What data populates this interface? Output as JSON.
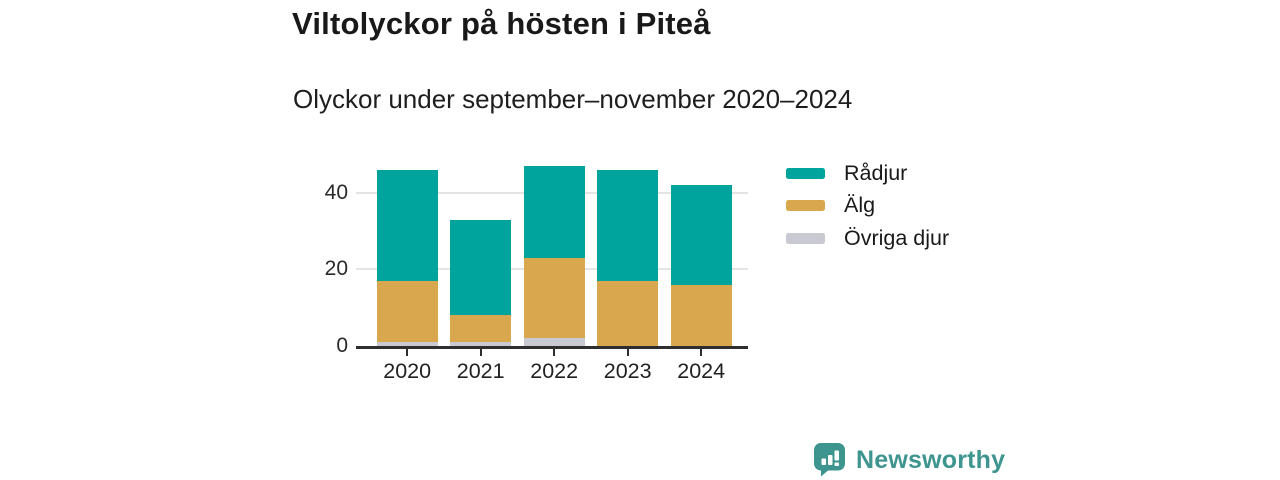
{
  "header": {
    "title": "Viltolyckor på hösten i Piteå",
    "subtitle": "Olyckor under september–november 2020–2024"
  },
  "chart_data": {
    "type": "bar",
    "stacked": true,
    "title": "Viltolyckor på hösten i Piteå",
    "subtitle": "Olyckor under september–november 2020–2024",
    "categories": [
      "2020",
      "2021",
      "2022",
      "2023",
      "2024"
    ],
    "series": [
      {
        "name": "Rådjur",
        "color": "#00a49c",
        "values": [
          29,
          25,
          24,
          29,
          26
        ]
      },
      {
        "name": "Älg",
        "color": "#d9a84e",
        "values": [
          16,
          7,
          21,
          17,
          16
        ]
      },
      {
        "name": "Övriga djur",
        "color": "#c9c9d1",
        "values": [
          1,
          1,
          2,
          0,
          0
        ]
      }
    ],
    "stack_order_bottom_to_top": [
      "Övriga djur",
      "Älg",
      "Rådjur"
    ],
    "totals": [
      46,
      33,
      47,
      46,
      42
    ],
    "xlabel": "",
    "ylabel": "",
    "y_ticks": [
      0,
      20,
      40
    ],
    "ylim": [
      0,
      48
    ],
    "grid": "horizontal",
    "legend_position": "right"
  },
  "colors": {
    "axis": "#2e2e2e",
    "gridline": "#e4e4e4",
    "tick_label": "#2a2a2a",
    "brand_teal": "#3e948e"
  },
  "branding": {
    "logo_text": "Newsworthy",
    "logo_icon": "newsworthy-speech-bubble-bar-chart-icon"
  }
}
